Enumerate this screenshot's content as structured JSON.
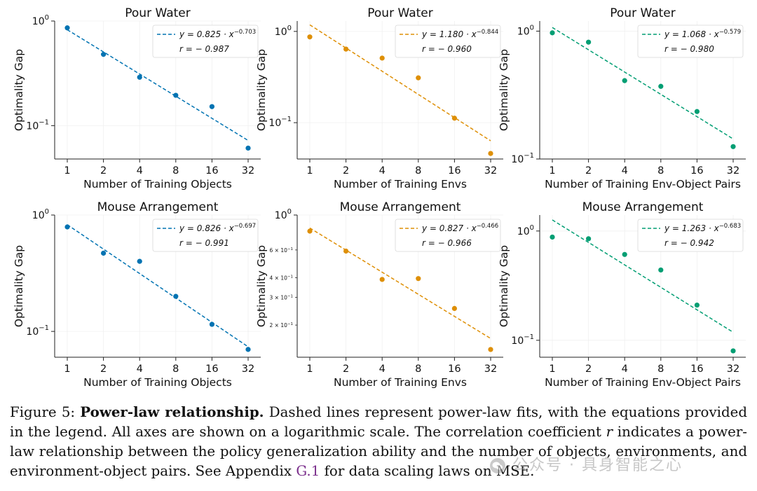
{
  "chart_data": [
    {
      "type": "scatter",
      "title": "Pour Water",
      "xlabel": "Number of Training Objects",
      "ylabel": "Optimality Gap",
      "xscale": "log2",
      "yscale": "log10",
      "x": [
        1,
        2,
        4,
        8,
        16,
        32
      ],
      "y": [
        0.86,
        0.48,
        0.29,
        0.195,
        0.152,
        0.061
      ],
      "ylim": [
        0.048,
        1.0
      ],
      "xticks": [
        "1",
        "2",
        "4",
        "8",
        "16",
        "32"
      ],
      "ytick_labels": [
        {
          "value": 1.0,
          "base": "10",
          "exp": "0"
        },
        {
          "value": 0.1,
          "base": "10",
          "exp": "−1"
        }
      ],
      "minor_ticks": [],
      "fit": {
        "a": 0.825,
        "b": -0.703,
        "style": "dashed"
      },
      "legend": {
        "equation": "y = 0.825 · x",
        "exponent": "−0.703",
        "r_text": "r = − 0.987",
        "position": "top-right"
      },
      "color": "#0173b2"
    },
    {
      "type": "scatter",
      "title": "Pour Water",
      "xlabel": "Number of Training Envs",
      "ylabel": "Optimality Gap",
      "xscale": "log2",
      "yscale": "log10",
      "x": [
        1,
        2,
        4,
        8,
        16,
        32
      ],
      "y": [
        0.87,
        0.64,
        0.51,
        0.31,
        0.112,
        0.046
      ],
      "ylim": [
        0.04,
        1.3
      ],
      "xticks": [
        "1",
        "2",
        "4",
        "8",
        "16",
        "32"
      ],
      "ytick_labels": [
        {
          "value": 1.0,
          "base": "10",
          "exp": "0"
        },
        {
          "value": 0.1,
          "base": "10",
          "exp": "−1"
        }
      ],
      "minor_ticks": [],
      "fit": {
        "a": 1.18,
        "b": -0.844,
        "style": "dashed"
      },
      "legend": {
        "equation": "y = 1.180 · x",
        "exponent": "−0.844",
        "r_text": "r = − 0.960",
        "position": "top-right"
      },
      "color": "#de8f05"
    },
    {
      "type": "scatter",
      "title": "Pour Water",
      "xlabel": "Number of Training Env-Object Pairs",
      "ylabel": "Optimality Gap",
      "xscale": "log2",
      "yscale": "log10",
      "x": [
        1,
        2,
        4,
        8,
        16,
        32
      ],
      "y": [
        0.97,
        0.82,
        0.41,
        0.37,
        0.235,
        0.125
      ],
      "ylim": [
        0.1,
        1.2
      ],
      "xticks": [
        "1",
        "2",
        "4",
        "8",
        "16",
        "32"
      ],
      "ytick_labels": [
        {
          "value": 1.0,
          "base": "10",
          "exp": "0"
        },
        {
          "value": 0.1,
          "base": "10",
          "exp": "−1"
        }
      ],
      "minor_ticks": [],
      "fit": {
        "a": 1.068,
        "b": -0.579,
        "style": "dashed"
      },
      "legend": {
        "equation": "y = 1.068 · x",
        "exponent": "−0.579",
        "r_text": "r = − 0.980",
        "position": "top-right"
      },
      "color": "#029e73"
    },
    {
      "type": "scatter",
      "title": "Mouse Arrangement",
      "xlabel": "Number of Training Objects",
      "ylabel": "Optimality Gap",
      "xscale": "log2",
      "yscale": "log10",
      "x": [
        1,
        2,
        4,
        8,
        16,
        32
      ],
      "y": [
        0.79,
        0.47,
        0.4,
        0.2,
        0.115,
        0.07
      ],
      "ylim": [
        0.06,
        1.0
      ],
      "xticks": [
        "1",
        "2",
        "4",
        "8",
        "16",
        "32"
      ],
      "ytick_labels": [
        {
          "value": 1.0,
          "base": "10",
          "exp": "0"
        },
        {
          "value": 0.1,
          "base": "10",
          "exp": "−1"
        }
      ],
      "minor_ticks": [],
      "fit": {
        "a": 0.826,
        "b": -0.697,
        "style": "dashed"
      },
      "legend": {
        "equation": "y = 0.826 · x",
        "exponent": "−0.697",
        "r_text": "r = − 0.991",
        "position": "top-right"
      },
      "color": "#0173b2"
    },
    {
      "type": "scatter",
      "title": "Mouse Arrangement",
      "xlabel": "Number of Training Envs",
      "ylabel": "Optimality Gap",
      "xscale": "log2",
      "yscale": "log10",
      "x": [
        1,
        2,
        4,
        8,
        16,
        32
      ],
      "y": [
        0.79,
        0.59,
        0.39,
        0.395,
        0.255,
        0.14
      ],
      "ylim": [
        0.125,
        1.0
      ],
      "xticks": [
        "1",
        "2",
        "4",
        "8",
        "16",
        "32"
      ],
      "ytick_labels": [
        {
          "value": 1.0,
          "base": "10",
          "exp": "0"
        }
      ],
      "minor_ticks": [
        {
          "value": 0.6,
          "label": "6 × 10",
          "exp": "−1"
        },
        {
          "value": 0.4,
          "label": "4 × 10",
          "exp": "−1"
        },
        {
          "value": 0.3,
          "label": "3 × 10",
          "exp": "−1"
        },
        {
          "value": 0.2,
          "label": "2 × 10",
          "exp": "−1"
        }
      ],
      "fit": {
        "a": 0.827,
        "b": -0.466,
        "style": "dashed"
      },
      "legend": {
        "equation": "y = 0.827 · x",
        "exponent": "−0.466",
        "r_text": "r = − 0.966",
        "position": "top-right"
      },
      "color": "#de8f05"
    },
    {
      "type": "scatter",
      "title": "Mouse Arrangement",
      "xlabel": "Number of Training Env-Object Pairs",
      "ylabel": "Optimality Gap",
      "xscale": "log2",
      "yscale": "log10",
      "x": [
        1,
        2,
        4,
        8,
        16,
        32
      ],
      "y": [
        0.88,
        0.85,
        0.61,
        0.44,
        0.21,
        0.08
      ],
      "ylim": [
        0.07,
        1.4
      ],
      "xticks": [
        "1",
        "2",
        "4",
        "8",
        "16",
        "32"
      ],
      "ytick_labels": [
        {
          "value": 1.0,
          "base": "10",
          "exp": "0"
        },
        {
          "value": 0.1,
          "base": "10",
          "exp": "−1"
        }
      ],
      "minor_ticks": [],
      "fit": {
        "a": 1.263,
        "b": -0.683,
        "style": "dashed"
      },
      "legend": {
        "equation": "y = 1.263 · x",
        "exponent": "−0.683",
        "r_text": "r = − 0.942",
        "position": "top-right"
      },
      "color": "#029e73"
    }
  ],
  "caption": {
    "label": "Figure 5: ",
    "bold_title": "Power-law relationship.",
    "text_1": " Dashed lines represent power-law fits, with the equations provided in the legend. All axes are shown on a logarithmic scale. The correlation coefficient ",
    "r_symbol": "r",
    "text_2": " indicates a power-law relationship between the policy generalization ability and the number of objects, environments, and environment-object pairs. See Appendix ",
    "appendix_link": "G.1",
    "text_3": " for data scaling laws on MSE."
  },
  "watermark": {
    "text": "公众号 · 具身智能之心",
    "icon": "wechat-icon"
  }
}
